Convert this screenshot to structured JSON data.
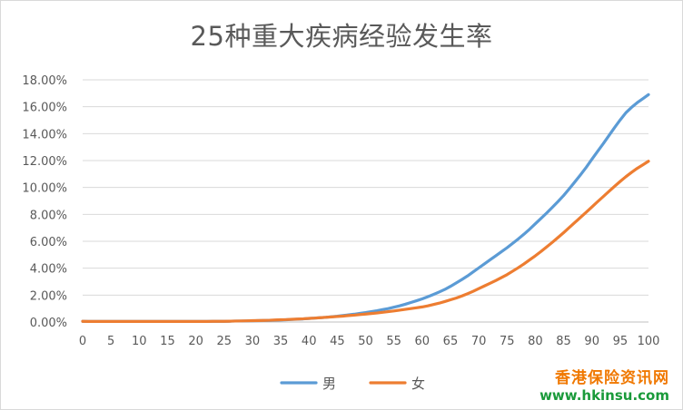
{
  "chart_data": {
    "type": "line",
    "title": "25种重大疾病经验发生率",
    "xlabel": "",
    "ylabel": "",
    "x": [
      0,
      1,
      2,
      3,
      4,
      5,
      6,
      7,
      8,
      9,
      10,
      11,
      12,
      13,
      14,
      15,
      16,
      17,
      18,
      19,
      20,
      21,
      22,
      23,
      24,
      25,
      26,
      27,
      28,
      29,
      30,
      31,
      32,
      33,
      34,
      35,
      36,
      37,
      38,
      39,
      40,
      41,
      42,
      43,
      44,
      45,
      46,
      47,
      48,
      49,
      50,
      51,
      52,
      53,
      54,
      55,
      56,
      57,
      58,
      59,
      60,
      61,
      62,
      63,
      64,
      65,
      66,
      67,
      68,
      69,
      70,
      71,
      72,
      73,
      74,
      75,
      76,
      77,
      78,
      79,
      80,
      81,
      82,
      83,
      84,
      85,
      86,
      87,
      88,
      89,
      90,
      91,
      92,
      93,
      94,
      95,
      96,
      97,
      98,
      99,
      100
    ],
    "x_ticks": [
      0,
      5,
      10,
      15,
      20,
      25,
      30,
      35,
      40,
      45,
      50,
      55,
      60,
      65,
      70,
      75,
      80,
      85,
      90,
      95,
      100
    ],
    "y_ticks": [
      0,
      2,
      4,
      6,
      8,
      10,
      12,
      14,
      16,
      18
    ],
    "y_tick_labels": [
      "0.00%",
      "2.00%",
      "4.00%",
      "6.00%",
      "8.00%",
      "10.00%",
      "12.00%",
      "14.00%",
      "16.00%",
      "18.00%"
    ],
    "ylim": [
      0,
      18
    ],
    "xlim": [
      0,
      100
    ],
    "grid": "horizontal",
    "legend": "bottom",
    "series": [
      {
        "name": "男",
        "color": "#5b9bd5",
        "values": [
          0.05,
          0.04,
          0.04,
          0.04,
          0.04,
          0.04,
          0.04,
          0.04,
          0.04,
          0.04,
          0.04,
          0.04,
          0.04,
          0.04,
          0.04,
          0.04,
          0.04,
          0.04,
          0.04,
          0.04,
          0.04,
          0.04,
          0.04,
          0.05,
          0.05,
          0.05,
          0.06,
          0.07,
          0.07,
          0.08,
          0.09,
          0.1,
          0.11,
          0.12,
          0.13,
          0.15,
          0.17,
          0.19,
          0.21,
          0.23,
          0.26,
          0.29,
          0.32,
          0.35,
          0.39,
          0.43,
          0.48,
          0.53,
          0.58,
          0.64,
          0.7,
          0.77,
          0.84,
          0.92,
          1.0,
          1.1,
          1.2,
          1.32,
          1.45,
          1.58,
          1.72,
          1.88,
          2.05,
          2.23,
          2.42,
          2.65,
          2.9,
          3.15,
          3.42,
          3.72,
          4.02,
          4.32,
          4.62,
          4.92,
          5.22,
          5.52,
          5.85,
          6.18,
          6.53,
          6.9,
          7.3,
          7.7,
          8.1,
          8.52,
          8.95,
          9.4,
          9.9,
          10.42,
          10.95,
          11.5,
          12.1,
          12.68,
          13.25,
          13.85,
          14.45,
          15.02,
          15.55,
          15.95,
          16.3,
          16.6,
          16.9
        ]
      },
      {
        "name": "女",
        "color": "#ed7d31",
        "values": [
          0.05,
          0.04,
          0.04,
          0.04,
          0.04,
          0.04,
          0.04,
          0.04,
          0.04,
          0.04,
          0.04,
          0.04,
          0.04,
          0.04,
          0.04,
          0.04,
          0.04,
          0.04,
          0.04,
          0.04,
          0.04,
          0.04,
          0.04,
          0.05,
          0.05,
          0.05,
          0.06,
          0.07,
          0.08,
          0.09,
          0.1,
          0.11,
          0.12,
          0.13,
          0.15,
          0.17,
          0.18,
          0.2,
          0.22,
          0.24,
          0.27,
          0.29,
          0.32,
          0.35,
          0.38,
          0.41,
          0.44,
          0.48,
          0.51,
          0.55,
          0.59,
          0.63,
          0.67,
          0.72,
          0.77,
          0.82,
          0.88,
          0.94,
          1.0,
          1.06,
          1.12,
          1.2,
          1.3,
          1.4,
          1.52,
          1.65,
          1.78,
          1.93,
          2.1,
          2.28,
          2.48,
          2.68,
          2.88,
          3.08,
          3.3,
          3.52,
          3.78,
          4.04,
          4.32,
          4.62,
          4.92,
          5.24,
          5.58,
          5.92,
          6.28,
          6.64,
          7.02,
          7.4,
          7.78,
          8.16,
          8.55,
          8.94,
          9.32,
          9.7,
          10.08,
          10.45,
          10.8,
          11.12,
          11.42,
          11.68,
          11.95
        ]
      }
    ]
  },
  "watermark": {
    "name": "香港保险资讯网",
    "url": "www.hkinsu.com"
  }
}
